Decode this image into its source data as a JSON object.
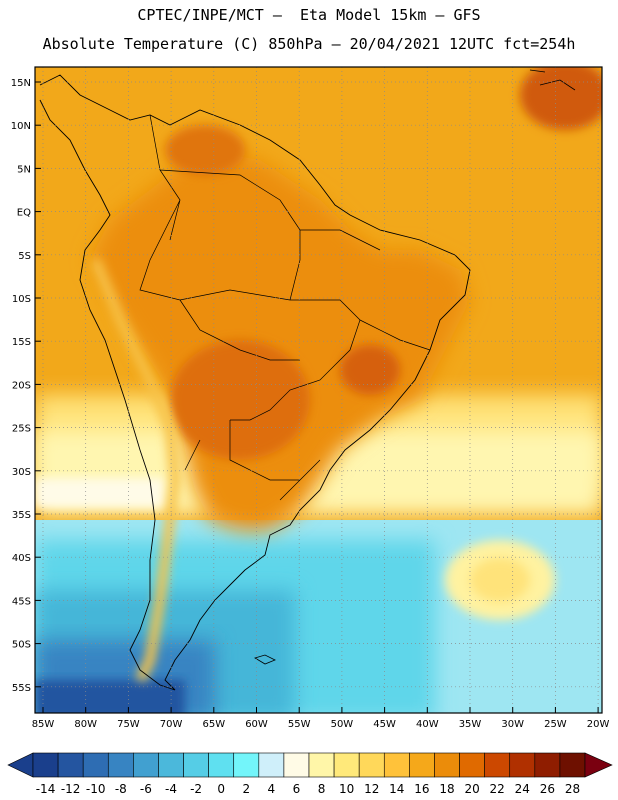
{
  "header": {
    "line1": "CPTEC/INPE/MCT –  Eta Model 15km – GFS",
    "line2": "Absolute Temperature (C) 850hPa – 20/04/2021 12UTC fct=254h"
  },
  "map": {
    "lat_labels": [
      "15N",
      "10N",
      "5N",
      "EQ",
      "5S",
      "10S",
      "15S",
      "20S",
      "25S",
      "30S",
      "35S",
      "40S",
      "45S",
      "50S",
      "55S"
    ],
    "lon_labels": [
      "85W",
      "80W",
      "75W",
      "70W",
      "65W",
      "60W",
      "55W",
      "50W",
      "45W",
      "40W",
      "35W",
      "30W",
      "25W",
      "20W"
    ],
    "lat_range": [
      -58,
      17
    ],
    "lon_range": [
      -85,
      -20
    ],
    "gridlines": "dotted"
  },
  "colorbar": {
    "labels": [
      "-14",
      "-12",
      "-10",
      "-8",
      "-6",
      "-4",
      "-2",
      "0",
      "2",
      "4",
      "6",
      "8",
      "10",
      "12",
      "14",
      "16",
      "18",
      "20",
      "22",
      "24",
      "26",
      "28"
    ],
    "colors": [
      "#1a3f8c",
      "#2455a0",
      "#2e6db3",
      "#3784c2",
      "#41a0d0",
      "#4bb8db",
      "#55cde6",
      "#5fe0f0",
      "#73f5fa",
      "#cfeffa",
      "#fffbe6",
      "#fff6a8",
      "#ffe97a",
      "#ffd85a",
      "#ffc23a",
      "#f5a81a",
      "#eb8c0a",
      "#e06a00",
      "#cc4800",
      "#b03000",
      "#8f1d00",
      "#6e1000"
    ]
  }
}
